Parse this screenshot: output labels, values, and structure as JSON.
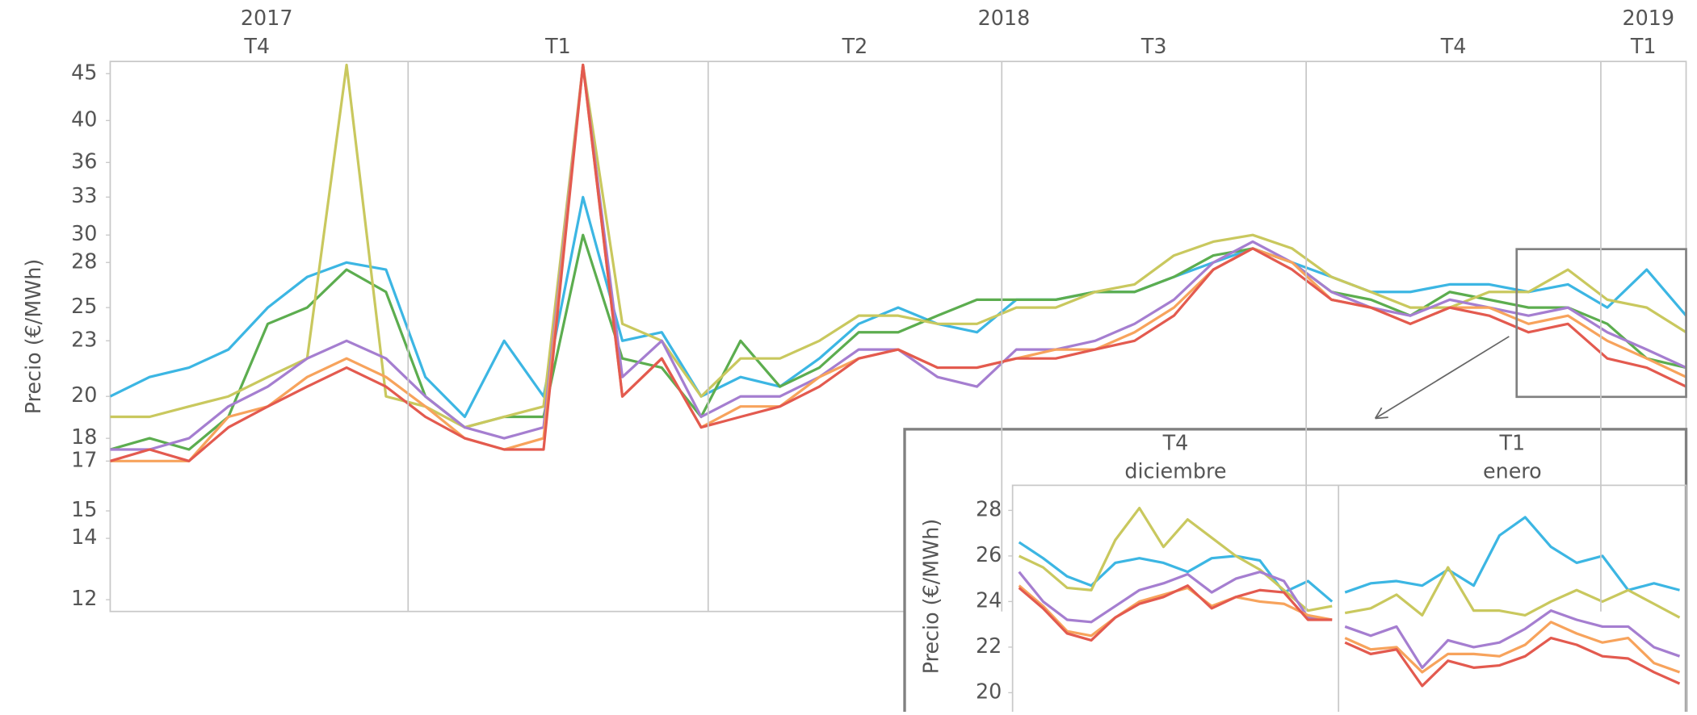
{
  "chart_data": [
    {
      "type": "line",
      "y_label": "Precio (€/MWh)",
      "log_scale": true,
      "years": [
        "2017",
        "2018",
        "2019"
      ],
      "quarters": [
        "T4",
        "T1",
        "T2",
        "T3",
        "T4",
        "T1"
      ],
      "ylim": [
        11.65,
        46.4
      ],
      "yticks": [
        12,
        14,
        15,
        17,
        18,
        20,
        23,
        25,
        28,
        30,
        33,
        36,
        40,
        45
      ],
      "series": [
        {
          "color": "#3cb6e3",
          "values": [
            20,
            21,
            21.5,
            22.5,
            25,
            27,
            28,
            27.5,
            21,
            19,
            23,
            20,
            33,
            23,
            23.5,
            20,
            21,
            20.5,
            22,
            24,
            25,
            24,
            23.5,
            25.5,
            25.5,
            26,
            26,
            27,
            28,
            29,
            28,
            27,
            26,
            26,
            26.5,
            26.5,
            26,
            26.5,
            25,
            27.5,
            24.5
          ]
        },
        {
          "color": "#5cad4f",
          "values": [
            17.5,
            18,
            17.5,
            19,
            24,
            25,
            27.5,
            26,
            20,
            18.5,
            19,
            19,
            30,
            22,
            21.5,
            19,
            23,
            20.5,
            21.5,
            23.5,
            23.5,
            24.5,
            25.5,
            25.5,
            25.5,
            26,
            26,
            27,
            28.5,
            29,
            28,
            26,
            25.5,
            24.5,
            26,
            25.5,
            25,
            25,
            24,
            22,
            21.5
          ]
        },
        {
          "color": "#c9c85e",
          "values": [
            19,
            19,
            19.5,
            20,
            21,
            22,
            46,
            20,
            19.5,
            18.5,
            19,
            19.5,
            46,
            24,
            23,
            20,
            22,
            22,
            23,
            24.5,
            24.5,
            24,
            24,
            25,
            25,
            26,
            26.5,
            28.5,
            29.5,
            30,
            29,
            27,
            26,
            25,
            25,
            26,
            26,
            27.5,
            25.5,
            25,
            23.5
          ]
        },
        {
          "color": "#a57ed0",
          "values": [
            17.5,
            17.5,
            18,
            19.5,
            20.5,
            22,
            23,
            22,
            20,
            18.5,
            18,
            18.5,
            46,
            21,
            23,
            19,
            20,
            20,
            21,
            22.5,
            22.5,
            21,
            20.5,
            22.5,
            22.5,
            23,
            24,
            25.5,
            28,
            29.5,
            28,
            26,
            25,
            24.5,
            25.5,
            25,
            24.5,
            25,
            23.5,
            22.5,
            21.5
          ]
        },
        {
          "color": "#f7a35c",
          "values": [
            17,
            17,
            17,
            19,
            19.5,
            21,
            22,
            21,
            19.5,
            18,
            17.5,
            18,
            46,
            20,
            22,
            18.5,
            19.5,
            19.5,
            21,
            22,
            22.5,
            21.5,
            21.5,
            22,
            22.5,
            22.5,
            23.5,
            25,
            27.5,
            29,
            28,
            25.5,
            25,
            24,
            25,
            25,
            24,
            24.5,
            23,
            22,
            21
          ]
        },
        {
          "color": "#e35a4f",
          "values": [
            17,
            17.5,
            17,
            18.5,
            19.5,
            20.5,
            21.5,
            20.5,
            19,
            18,
            17.5,
            17.5,
            46,
            20,
            22,
            18.5,
            19,
            19.5,
            20.5,
            22,
            22.5,
            21.5,
            21.5,
            22,
            22,
            22.5,
            23,
            24.5,
            27.5,
            29,
            27.5,
            25.5,
            25,
            24,
            25,
            24.5,
            23.5,
            24,
            22,
            21.5,
            20.5
          ]
        }
      ]
    },
    {
      "type": "line",
      "y_label": "Precio (€/MWh)",
      "ylim": [
        19.4,
        29.1
      ],
      "yticks": [
        20,
        22,
        24,
        26,
        28
      ],
      "panels": [
        {
          "quarter": "T4",
          "month": "diciembre",
          "series": [
            {
              "color": "#3cb6e3",
              "values": [
                26.6,
                25.9,
                25.1,
                24.7,
                25.7,
                25.9,
                25.7,
                25.3,
                25.9,
                26.0,
                25.8,
                24.4,
                24.9,
                24.0
              ]
            },
            {
              "color": "#c9c85e",
              "values": [
                26.0,
                25.5,
                24.6,
                24.5,
                26.7,
                28.1,
                26.4,
                27.6,
                26.8,
                26.0,
                25.4,
                24.5,
                23.6,
                23.8
              ]
            },
            {
              "color": "#a57ed0",
              "values": [
                25.3,
                24.0,
                23.2,
                23.1,
                23.8,
                24.5,
                24.8,
                25.2,
                24.4,
                25.0,
                25.3,
                24.9,
                23.3,
                23.2
              ]
            },
            {
              "color": "#f7a35c",
              "values": [
                24.7,
                23.8,
                22.7,
                22.5,
                23.3,
                24.0,
                24.3,
                24.6,
                23.8,
                24.2,
                24.0,
                23.9,
                23.4,
                23.2
              ]
            },
            {
              "color": "#e35a4f",
              "values": [
                24.6,
                23.7,
                22.6,
                22.3,
                23.3,
                23.9,
                24.2,
                24.7,
                23.7,
                24.2,
                24.5,
                24.4,
                23.2,
                23.2
              ]
            }
          ]
        },
        {
          "quarter": "T1",
          "month": "enero",
          "series": [
            {
              "color": "#3cb6e3",
              "values": [
                24.4,
                24.8,
                24.9,
                24.7,
                25.4,
                24.7,
                26.9,
                27.7,
                26.4,
                25.7,
                26.0,
                24.5,
                24.8,
                24.5
              ]
            },
            {
              "color": "#c9c85e",
              "values": [
                23.5,
                23.7,
                24.3,
                23.4,
                25.5,
                23.6,
                23.6,
                23.4,
                24.0,
                24.5,
                24.0,
                24.5,
                23.9,
                23.3
              ]
            },
            {
              "color": "#a57ed0",
              "values": [
                22.9,
                22.5,
                22.9,
                21.1,
                22.3,
                22.0,
                22.2,
                22.8,
                23.6,
                23.2,
                22.9,
                22.9,
                22.0,
                21.6
              ]
            },
            {
              "color": "#f7a35c",
              "values": [
                22.4,
                21.9,
                22.0,
                20.9,
                21.7,
                21.7,
                21.6,
                22.1,
                23.1,
                22.6,
                22.2,
                22.4,
                21.3,
                20.9
              ]
            },
            {
              "color": "#e35a4f",
              "values": [
                22.2,
                21.7,
                21.9,
                20.3,
                21.4,
                21.1,
                21.2,
                21.6,
                22.4,
                22.1,
                21.6,
                21.5,
                20.9,
                20.4
              ]
            }
          ]
        }
      ]
    }
  ]
}
